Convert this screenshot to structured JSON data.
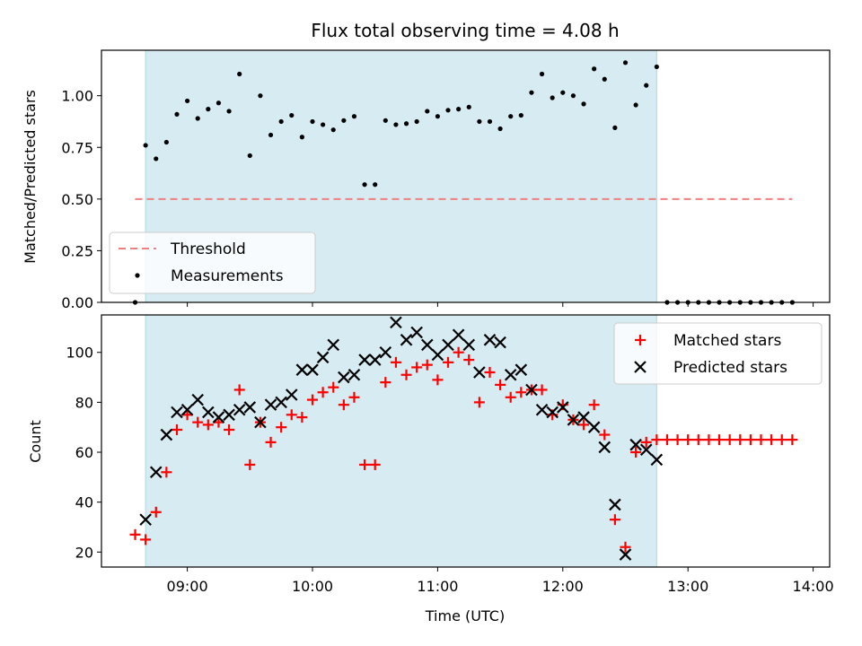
{
  "chart_data": [
    {
      "type": "scatter",
      "title": "Flux total observing time = 4.08 h",
      "ylabel": "Matched/Predicted stars",
      "xlabel": "",
      "ylim": [
        0,
        1.22
      ],
      "yticks": [
        "0.00",
        "0.25",
        "0.50",
        "0.75",
        "1.00"
      ],
      "shaded_span": [
        "08:40",
        "12:45"
      ],
      "threshold": {
        "value": 0.5,
        "x_range": [
          "08:35",
          "13:50"
        ],
        "color": "#f08080"
      },
      "legend": {
        "position": "lower-left",
        "entries": [
          {
            "name": "Threshold",
            "style": "dashed-line",
            "color": "#f08080"
          },
          {
            "name": "Measurements",
            "style": "dot",
            "color": "#000000"
          }
        ]
      },
      "series": [
        {
          "name": "Measurements",
          "color": "#000000",
          "points": [
            [
              "08:35",
              0.0
            ],
            [
              "08:40",
              0.76
            ],
            [
              "08:45",
              0.695
            ],
            [
              "08:50",
              0.775
            ],
            [
              "08:55",
              0.91
            ],
            [
              "09:00",
              0.975
            ],
            [
              "09:05",
              0.89
            ],
            [
              "09:10",
              0.935
            ],
            [
              "09:15",
              0.965
            ],
            [
              "09:20",
              0.925
            ],
            [
              "09:25",
              1.105
            ],
            [
              "09:30",
              0.71
            ],
            [
              "09:35",
              1.0
            ],
            [
              "09:40",
              0.81
            ],
            [
              "09:45",
              0.875
            ],
            [
              "09:50",
              0.905
            ],
            [
              "09:55",
              0.8
            ],
            [
              "10:00",
              0.875
            ],
            [
              "10:05",
              0.86
            ],
            [
              "10:10",
              0.835
            ],
            [
              "10:15",
              0.88
            ],
            [
              "10:20",
              0.9
            ],
            [
              "10:25",
              0.57
            ],
            [
              "10:30",
              0.57
            ],
            [
              "10:35",
              0.88
            ],
            [
              "10:40",
              0.86
            ],
            [
              "10:45",
              0.865
            ],
            [
              "10:50",
              0.875
            ],
            [
              "10:55",
              0.925
            ],
            [
              "11:00",
              0.9
            ],
            [
              "11:05",
              0.93
            ],
            [
              "11:10",
              0.935
            ],
            [
              "11:15",
              0.945
            ],
            [
              "11:20",
              0.875
            ],
            [
              "11:25",
              0.875
            ],
            [
              "11:30",
              0.84
            ],
            [
              "11:35",
              0.9
            ],
            [
              "11:40",
              0.905
            ],
            [
              "11:45",
              1.015
            ],
            [
              "11:50",
              1.105
            ],
            [
              "11:55",
              0.99
            ],
            [
              "12:00",
              1.015
            ],
            [
              "12:05",
              1.0
            ],
            [
              "12:10",
              0.96
            ],
            [
              "12:15",
              1.13
            ],
            [
              "12:20",
              1.08
            ],
            [
              "12:25",
              0.845
            ],
            [
              "12:30",
              1.16
            ],
            [
              "12:35",
              0.955
            ],
            [
              "12:40",
              1.05
            ],
            [
              "12:45",
              1.14
            ],
            [
              "12:50",
              0.0
            ],
            [
              "12:55",
              0.0
            ],
            [
              "13:00",
              0.0
            ],
            [
              "13:05",
              0.0
            ],
            [
              "13:10",
              0.0
            ],
            [
              "13:15",
              0.0
            ],
            [
              "13:20",
              0.0
            ],
            [
              "13:25",
              0.0
            ],
            [
              "13:30",
              0.0
            ],
            [
              "13:35",
              0.0
            ],
            [
              "13:40",
              0.0
            ],
            [
              "13:45",
              0.0
            ],
            [
              "13:50",
              0.0
            ]
          ]
        }
      ]
    },
    {
      "type": "scatter",
      "title": "",
      "ylabel": "Count",
      "xlabel": "Time (UTC)",
      "ylim": [
        14,
        115
      ],
      "yticks": [
        "20",
        "40",
        "60",
        "80",
        "100"
      ],
      "xticks": [
        "09:00",
        "10:00",
        "11:00",
        "12:00",
        "13:00",
        "14:00"
      ],
      "shaded_span": [
        "08:40",
        "12:45"
      ],
      "legend": {
        "position": "top-right",
        "entries": [
          {
            "name": "Matched stars",
            "style": "plus",
            "color": "#ff0000"
          },
          {
            "name": "Predicted stars",
            "style": "x",
            "color": "#000000"
          }
        ]
      },
      "series": [
        {
          "name": "Matched stars",
          "color": "#ff0000",
          "points": [
            [
              "08:35",
              27
            ],
            [
              "08:40",
              25
            ],
            [
              "08:45",
              36
            ],
            [
              "08:50",
              52
            ],
            [
              "08:55",
              69
            ],
            [
              "09:00",
              75
            ],
            [
              "09:05",
              72
            ],
            [
              "09:10",
              71
            ],
            [
              "09:15",
              72
            ],
            [
              "09:20",
              69
            ],
            [
              "09:25",
              85
            ],
            [
              "09:30",
              55
            ],
            [
              "09:35",
              72
            ],
            [
              "09:40",
              64
            ],
            [
              "09:45",
              70
            ],
            [
              "09:50",
              75
            ],
            [
              "09:55",
              74
            ],
            [
              "10:00",
              81
            ],
            [
              "10:05",
              84
            ],
            [
              "10:10",
              86
            ],
            [
              "10:15",
              79
            ],
            [
              "10:20",
              82
            ],
            [
              "10:25",
              55
            ],
            [
              "10:30",
              55
            ],
            [
              "10:35",
              88
            ],
            [
              "10:40",
              96
            ],
            [
              "10:45",
              91
            ],
            [
              "10:50",
              94
            ],
            [
              "10:55",
              95
            ],
            [
              "11:00",
              89
            ],
            [
              "11:05",
              96
            ],
            [
              "11:10",
              100
            ],
            [
              "11:15",
              97
            ],
            [
              "11:20",
              80
            ],
            [
              "11:25",
              92
            ],
            [
              "11:30",
              87
            ],
            [
              "11:35",
              82
            ],
            [
              "11:40",
              84
            ],
            [
              "11:45",
              85
            ],
            [
              "11:50",
              85
            ],
            [
              "11:55",
              75
            ],
            [
              "12:00",
              79
            ],
            [
              "12:05",
              73
            ],
            [
              "12:10",
              71
            ],
            [
              "12:15",
              79
            ],
            [
              "12:20",
              67
            ],
            [
              "12:25",
              33
            ],
            [
              "12:30",
              22
            ],
            [
              "12:35",
              60
            ],
            [
              "12:40",
              64
            ],
            [
              "12:45",
              65
            ],
            [
              "12:50",
              65
            ],
            [
              "12:55",
              65
            ],
            [
              "13:00",
              65
            ],
            [
              "13:05",
              65
            ],
            [
              "13:10",
              65
            ],
            [
              "13:15",
              65
            ],
            [
              "13:20",
              65
            ],
            [
              "13:25",
              65
            ],
            [
              "13:30",
              65
            ],
            [
              "13:35",
              65
            ],
            [
              "13:40",
              65
            ],
            [
              "13:45",
              65
            ],
            [
              "13:50",
              65
            ]
          ]
        },
        {
          "name": "Predicted stars",
          "color": "#000000",
          "points": [
            [
              "08:40",
              33
            ],
            [
              "08:45",
              52
            ],
            [
              "08:50",
              67
            ],
            [
              "08:55",
              76
            ],
            [
              "09:00",
              77
            ],
            [
              "09:05",
              81
            ],
            [
              "09:10",
              76
            ],
            [
              "09:15",
              74
            ],
            [
              "09:20",
              75
            ],
            [
              "09:25",
              77
            ],
            [
              "09:30",
              78
            ],
            [
              "09:35",
              72
            ],
            [
              "09:40",
              79
            ],
            [
              "09:45",
              80
            ],
            [
              "09:50",
              83
            ],
            [
              "09:55",
              93
            ],
            [
              "10:00",
              93
            ],
            [
              "10:05",
              98
            ],
            [
              "10:10",
              103
            ],
            [
              "10:15",
              90
            ],
            [
              "10:20",
              91
            ],
            [
              "10:25",
              97
            ],
            [
              "10:30",
              97
            ],
            [
              "10:35",
              100
            ],
            [
              "10:40",
              112
            ],
            [
              "10:45",
              105
            ],
            [
              "10:50",
              108
            ],
            [
              "10:55",
              103
            ],
            [
              "11:00",
              99
            ],
            [
              "11:05",
              103
            ],
            [
              "11:10",
              107
            ],
            [
              "11:15",
              103
            ],
            [
              "11:20",
              92
            ],
            [
              "11:25",
              105
            ],
            [
              "11:30",
              104
            ],
            [
              "11:35",
              91
            ],
            [
              "11:40",
              93
            ],
            [
              "11:45",
              85
            ],
            [
              "11:50",
              77
            ],
            [
              "11:55",
              76
            ],
            [
              "12:00",
              78
            ],
            [
              "12:05",
              73
            ],
            [
              "12:10",
              74
            ],
            [
              "12:15",
              70
            ],
            [
              "12:20",
              62
            ],
            [
              "12:25",
              39
            ],
            [
              "12:30",
              19
            ],
            [
              "12:35",
              63
            ],
            [
              "12:40",
              61
            ],
            [
              "12:45",
              57
            ]
          ]
        }
      ]
    }
  ]
}
